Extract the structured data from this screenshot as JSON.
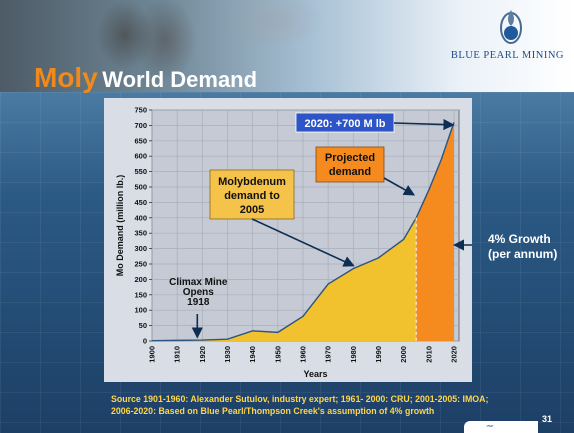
{
  "header": {
    "title_highlight": "Moly",
    "title_rest": "World Demand",
    "logo_text": "BLUE PEARL MINING"
  },
  "chart_data": {
    "type": "area",
    "ylabel": "Mo Demand (million lb.)",
    "xlabel": "Years",
    "x_ticks": [
      "1900",
      "1910",
      "1920",
      "1930",
      "1940",
      "1950",
      "1960",
      "1970",
      "1980",
      "1990",
      "2000",
      "2010",
      "2020"
    ],
    "y_ticks": [
      0,
      50,
      100,
      150,
      200,
      250,
      300,
      350,
      400,
      450,
      500,
      550,
      600,
      650,
      700,
      750
    ],
    "xlim": [
      1900,
      2022
    ],
    "ylim": [
      0,
      750
    ],
    "grid": true,
    "series": [
      {
        "x": [
          1900,
          1910,
          1920,
          1930,
          1940,
          1950,
          1960,
          1970,
          1980,
          1990,
          2000,
          2005
        ],
        "y": [
          1,
          2,
          3,
          6,
          33,
          28,
          80,
          185,
          235,
          270,
          330,
          400
        ],
        "color": "#f2c12e"
      },
      {
        "x": [
          2005,
          2010,
          2015,
          2020
        ],
        "y": [
          400,
          490,
          590,
          710
        ],
        "color": "#f58a1f"
      }
    ],
    "annotations": {
      "climax": {
        "line1": "Climax Mine",
        "line2": "Opens",
        "line3": "1918",
        "x": 1918,
        "y": 3
      },
      "historical": {
        "line1": "Molybdenum",
        "line2": "demand to",
        "line3": "2005",
        "x": 1980,
        "y": 245
      },
      "projected": {
        "line1": "Projected",
        "line2": "demand",
        "x": 2004,
        "y": 475
      },
      "target": {
        "text": "2020: +700 M lb",
        "x": 2020,
        "y": 705
      },
      "growth": {
        "line1": "4% Growth",
        "line2": "(per annum)",
        "x": 2021,
        "y": 310
      }
    }
  },
  "footer": {
    "source": "Source 1901-1960: Alexander Sutulov, industry expert; 1961- 2000: CRU; 2001-2005: IMOA; 2006-2020: Based on Blue Pearl/Thompson Creek's assumption of 4% growth",
    "page_number": "31"
  }
}
